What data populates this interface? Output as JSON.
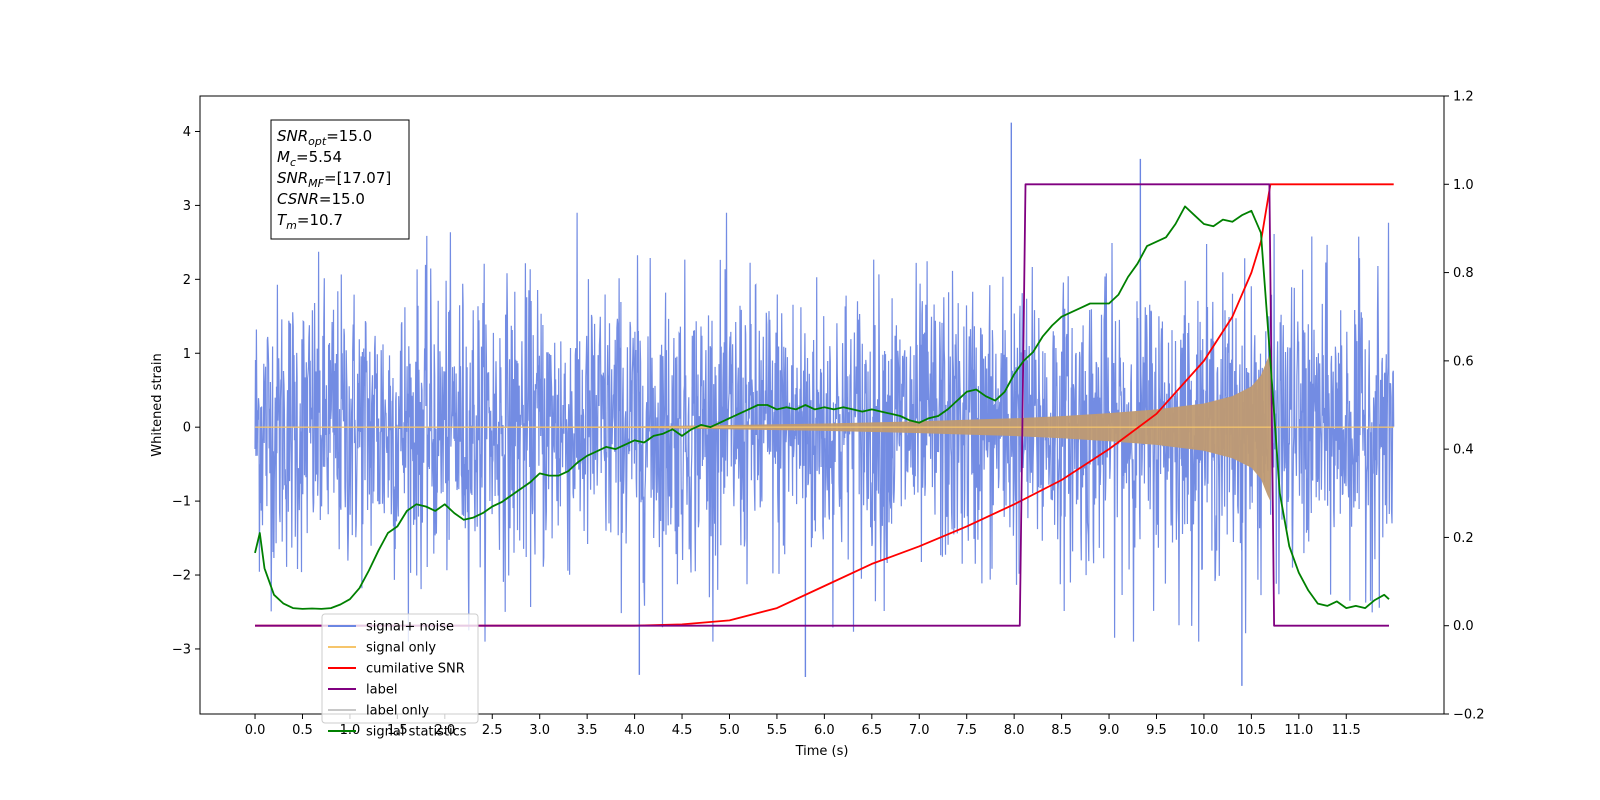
{
  "chart_data": {
    "type": "line",
    "xlabel": "Time (s)",
    "ylabel": "Whitened strain",
    "y2label": "",
    "xlim": [
      -0.58,
      12.53
    ],
    "ylim": [
      -3.88,
      4.48
    ],
    "y2lim": [
      -0.2,
      1.2
    ],
    "x_ticks": [
      "0.0",
      "0.5",
      "1.0",
      "1.5",
      "2.0",
      "2.5",
      "3.0",
      "3.5",
      "4.0",
      "4.5",
      "5.0",
      "5.5",
      "6.0",
      "6.5",
      "7.0",
      "7.5",
      "8.0",
      "8.5",
      "9.0",
      "9.5",
      "10.0",
      "10.5",
      "11.0",
      "11.5"
    ],
    "y_ticks": [
      "−3",
      "−2",
      "−1",
      "0",
      "1",
      "2",
      "3",
      "4"
    ],
    "y2_ticks": [
      "−0.2",
      "0.0",
      "0.2",
      "0.4",
      "0.6",
      "0.8",
      "1.0",
      "1.2"
    ],
    "grid": false,
    "legend_position": "lower-left",
    "legend": [
      {
        "label": "signal+ noise",
        "color": "#6b86e2"
      },
      {
        "label": "signal only",
        "color": "#f6c56b"
      },
      {
        "label": "cumilative SNR",
        "color": "#ff0000"
      },
      {
        "label": "label",
        "color": "#800080"
      },
      {
        "label": "label only",
        "color": "#c8c8c8"
      },
      {
        "label": "signal statistics",
        "color": "#008000"
      }
    ],
    "info_box": [
      {
        "main": "SNR",
        "sub": "opt",
        "rest": "=15.0"
      },
      {
        "main": "M",
        "sub": "c",
        "rest": "=5.54"
      },
      {
        "main": "SNR",
        "sub": "MF",
        "rest": "=[17.07]"
      },
      {
        "main": "CSNR",
        "sub": "",
        "rest": "=15.0"
      },
      {
        "main": "T",
        "sub": "m",
        "rest": "=10.7"
      }
    ],
    "series": [
      {
        "name": "signal+ noise",
        "axis": "left",
        "color": "#6b86e2",
        "style": "dense-noise",
        "x_range": [
          0.0,
          12.0
        ],
        "band_typical": [
          -1.5,
          1.8
        ],
        "band_peaks": [
          -2.9,
          2.9
        ],
        "notable_spikes": [
          [
            7.97,
            4.12
          ],
          [
            9.33,
            3.63
          ],
          [
            10.4,
            -3.5
          ],
          [
            4.05,
            -3.35
          ],
          [
            5.8,
            -3.38
          ]
        ]
      },
      {
        "name": "signal only",
        "axis": "left",
        "color": "#f6c56b",
        "style": "chirp-envelope",
        "merger_time": 10.7,
        "envelope": [
          [
            0.0,
            0.0
          ],
          [
            4.0,
            0.01
          ],
          [
            5.0,
            0.03
          ],
          [
            6.0,
            0.05
          ],
          [
            7.0,
            0.08
          ],
          [
            7.5,
            0.1
          ],
          [
            8.0,
            0.12
          ],
          [
            8.5,
            0.15
          ],
          [
            9.0,
            0.19
          ],
          [
            9.5,
            0.24
          ],
          [
            10.0,
            0.32
          ],
          [
            10.3,
            0.42
          ],
          [
            10.5,
            0.55
          ],
          [
            10.6,
            0.7
          ],
          [
            10.67,
            0.92
          ],
          [
            10.7,
            1.0
          ],
          [
            10.72,
            0.0
          ],
          [
            12.0,
            0.0
          ]
        ]
      },
      {
        "name": "cumilative SNR",
        "axis": "right",
        "color": "#ff0000",
        "x": [
          0.0,
          4.0,
          4.5,
          5.0,
          5.5,
          6.0,
          6.5,
          7.0,
          7.5,
          8.0,
          8.5,
          9.0,
          9.5,
          10.0,
          10.3,
          10.5,
          10.6,
          10.7,
          11.0,
          11.5,
          12.0
        ],
        "values": [
          0.0,
          0.0,
          0.003,
          0.012,
          0.04,
          0.09,
          0.14,
          0.18,
          0.225,
          0.275,
          0.33,
          0.4,
          0.48,
          0.6,
          0.7,
          0.8,
          0.87,
          1.0,
          1.0,
          1.0,
          1.0
        ]
      },
      {
        "name": "label",
        "axis": "right",
        "color": "#800080",
        "x": [
          0.0,
          8.06,
          8.12,
          10.69,
          10.74,
          11.95
        ],
        "values": [
          0.0,
          0.0,
          1.0,
          1.0,
          0.0,
          0.0
        ]
      },
      {
        "name": "signal statistics",
        "axis": "right",
        "color": "#008000",
        "x": [
          0.0,
          0.05,
          0.1,
          0.2,
          0.3,
          0.4,
          0.5,
          0.6,
          0.7,
          0.8,
          0.9,
          1.0,
          1.1,
          1.2,
          1.3,
          1.4,
          1.5,
          1.6,
          1.7,
          1.8,
          1.9,
          2.0,
          2.1,
          2.2,
          2.3,
          2.4,
          2.5,
          2.6,
          2.7,
          2.8,
          2.9,
          3.0,
          3.1,
          3.2,
          3.3,
          3.4,
          3.5,
          3.6,
          3.7,
          3.8,
          3.9,
          4.0,
          4.1,
          4.2,
          4.3,
          4.4,
          4.5,
          4.6,
          4.7,
          4.8,
          4.9,
          5.0,
          5.1,
          5.2,
          5.3,
          5.4,
          5.5,
          5.6,
          5.7,
          5.8,
          5.9,
          6.0,
          6.1,
          6.2,
          6.3,
          6.4,
          6.5,
          6.6,
          6.7,
          6.8,
          6.9,
          7.0,
          7.1,
          7.2,
          7.3,
          7.4,
          7.5,
          7.6,
          7.7,
          7.8,
          7.9,
          8.0,
          8.1,
          8.2,
          8.3,
          8.4,
          8.5,
          8.6,
          8.7,
          8.8,
          8.9,
          9.0,
          9.1,
          9.2,
          9.3,
          9.4,
          9.5,
          9.6,
          9.7,
          9.8,
          9.9,
          10.0,
          10.1,
          10.2,
          10.3,
          10.4,
          10.5,
          10.6,
          10.7,
          10.8,
          10.9,
          11.0,
          11.1,
          11.2,
          11.3,
          11.4,
          11.5,
          11.6,
          11.7,
          11.8,
          11.9,
          11.95
        ],
        "values": [
          0.165,
          0.21,
          0.13,
          0.07,
          0.05,
          0.04,
          0.038,
          0.039,
          0.038,
          0.04,
          0.048,
          0.06,
          0.085,
          0.125,
          0.17,
          0.21,
          0.225,
          0.26,
          0.275,
          0.27,
          0.26,
          0.275,
          0.255,
          0.24,
          0.245,
          0.255,
          0.27,
          0.28,
          0.295,
          0.31,
          0.325,
          0.345,
          0.34,
          0.34,
          0.35,
          0.37,
          0.385,
          0.395,
          0.405,
          0.4,
          0.41,
          0.42,
          0.415,
          0.43,
          0.435,
          0.445,
          0.43,
          0.445,
          0.455,
          0.45,
          0.46,
          0.47,
          0.48,
          0.49,
          0.5,
          0.5,
          0.49,
          0.495,
          0.49,
          0.5,
          0.49,
          0.495,
          0.49,
          0.495,
          0.49,
          0.485,
          0.49,
          0.485,
          0.48,
          0.475,
          0.465,
          0.46,
          0.47,
          0.475,
          0.49,
          0.51,
          0.53,
          0.535,
          0.52,
          0.51,
          0.53,
          0.57,
          0.6,
          0.62,
          0.655,
          0.68,
          0.7,
          0.71,
          0.72,
          0.73,
          0.73,
          0.73,
          0.75,
          0.79,
          0.82,
          0.86,
          0.87,
          0.88,
          0.91,
          0.95,
          0.93,
          0.91,
          0.905,
          0.92,
          0.915,
          0.93,
          0.94,
          0.89,
          0.6,
          0.3,
          0.18,
          0.12,
          0.08,
          0.05,
          0.045,
          0.055,
          0.04,
          0.045,
          0.04,
          0.058,
          0.07,
          0.06
        ]
      }
    ]
  }
}
